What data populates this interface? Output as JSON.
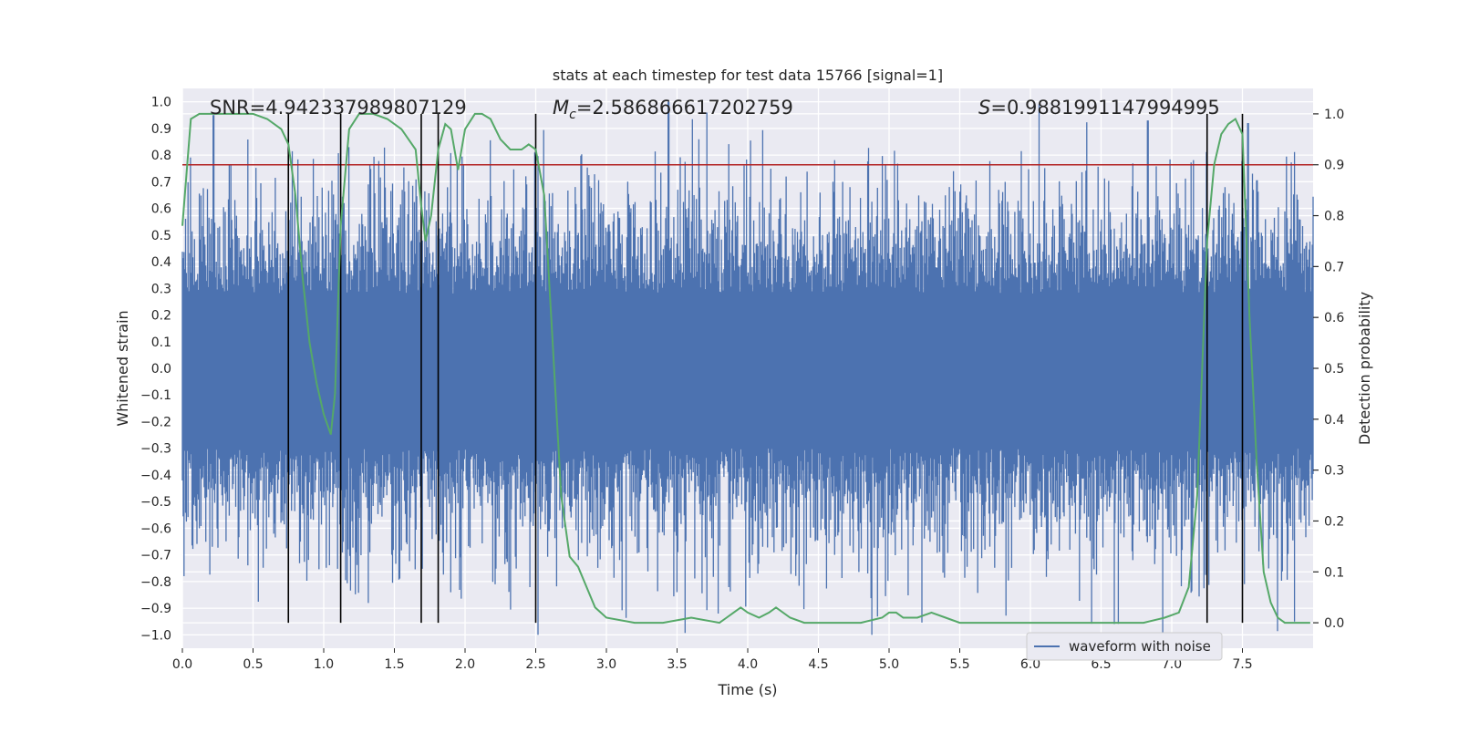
{
  "chart_data": {
    "type": "line",
    "title": "stats at each timestep for test data 15766 [signal=1]",
    "xlabel": "Time (s)",
    "ylabel_left": "Whitened strain",
    "ylabel_right": "Detection probability",
    "xlim": [
      0.0,
      8.0
    ],
    "ylim_left": [
      -1.05,
      1.05
    ],
    "ylim_right": [
      -0.05,
      1.05
    ],
    "x_ticks": [
      "0.0",
      "0.5",
      "1.0",
      "1.5",
      "2.0",
      "2.5",
      "3.0",
      "3.5",
      "4.0",
      "4.5",
      "5.0",
      "5.5",
      "6.0",
      "6.5",
      "7.0",
      "7.5"
    ],
    "x_tick_values": [
      0,
      0.5,
      1,
      1.5,
      2,
      2.5,
      3,
      3.5,
      4,
      4.5,
      5,
      5.5,
      6,
      6.5,
      7,
      7.5
    ],
    "y_ticks_left": [
      "1.0",
      "0.9",
      "0.8",
      "0.7",
      "0.6",
      "0.5",
      "0.4",
      "0.3",
      "0.2",
      "0.1",
      "0.0",
      "−0.1",
      "−0.2",
      "−0.3",
      "−0.4",
      "−0.5",
      "−0.6",
      "−0.7",
      "−0.8",
      "−0.9",
      "−1.0"
    ],
    "y_tick_values_left": [
      1.0,
      0.9,
      0.8,
      0.7,
      0.6,
      0.5,
      0.4,
      0.3,
      0.2,
      0.1,
      0.0,
      -0.1,
      -0.2,
      -0.3,
      -0.4,
      -0.5,
      -0.6,
      -0.7,
      -0.8,
      -0.9,
      -1.0
    ],
    "y_ticks_right": [
      "1.0",
      "0.9",
      "0.8",
      "0.7",
      "0.6",
      "0.5",
      "0.4",
      "0.3",
      "0.2",
      "0.1",
      "0.0"
    ],
    "y_tick_values_right": [
      1.0,
      0.9,
      0.8,
      0.7,
      0.6,
      0.5,
      0.4,
      0.3,
      0.2,
      0.1,
      0.0
    ],
    "stats": {
      "snr": "SNR=4.942337989807129",
      "mc_symbol": "M",
      "mc_sub": "c",
      "mc_value": "=2.586866617202759",
      "s_symbol": "S",
      "s_value": "=0.9881991147994995"
    },
    "legend": {
      "label": "waveform with noise",
      "placement": "lower-right"
    },
    "threshold": {
      "value": 0.9,
      "axis": "right",
      "color": "#b22222"
    },
    "vertical_markers_s": [
      0.75,
      1.12,
      1.69,
      1.81,
      2.5,
      7.25,
      7.5
    ],
    "waveform": {
      "name": "waveform with noise",
      "color": "#4c72b0",
      "duration_s": 8.0,
      "notable_peaks": [
        [
          0.22,
          0.95
        ],
        [
          1.14,
          0.62
        ],
        [
          3.44,
          1.0
        ],
        [
          6.83,
          0.93
        ],
        [
          7.54,
          0.92
        ],
        [
          3.79,
          -0.92
        ],
        [
          7.87,
          -0.95
        ]
      ]
    },
    "detection_probability": {
      "name": "detection probability",
      "color": "#55a868",
      "x": [
        0.0,
        0.06,
        0.12,
        0.2,
        0.3,
        0.4,
        0.5,
        0.6,
        0.7,
        0.75,
        0.8,
        0.85,
        0.9,
        0.95,
        1.0,
        1.05,
        1.08,
        1.12,
        1.18,
        1.25,
        1.35,
        1.45,
        1.55,
        1.6,
        1.65,
        1.69,
        1.72,
        1.76,
        1.81,
        1.86,
        1.9,
        1.95,
        2.0,
        2.07,
        2.12,
        2.18,
        2.25,
        2.32,
        2.4,
        2.45,
        2.5,
        2.56,
        2.62,
        2.68,
        2.74,
        2.8,
        2.86,
        2.92,
        3.0,
        3.2,
        3.4,
        3.6,
        3.8,
        3.85,
        3.9,
        3.95,
        4.0,
        4.08,
        4.15,
        4.2,
        4.3,
        4.4,
        4.6,
        4.8,
        4.95,
        5.0,
        5.05,
        5.1,
        5.2,
        5.3,
        5.4,
        5.5,
        5.7,
        6.0,
        6.5,
        6.8,
        6.95,
        7.05,
        7.12,
        7.18,
        7.25,
        7.3,
        7.35,
        7.4,
        7.45,
        7.5,
        7.55,
        7.6,
        7.65,
        7.7,
        7.75,
        7.8,
        7.9,
        7.98
      ],
      "y": [
        0.78,
        0.99,
        1.0,
        1.0,
        1.0,
        1.0,
        1.0,
        0.99,
        0.97,
        0.94,
        0.84,
        0.68,
        0.55,
        0.47,
        0.41,
        0.37,
        0.45,
        0.78,
        0.97,
        1.0,
        1.0,
        0.99,
        0.97,
        0.95,
        0.93,
        0.82,
        0.75,
        0.8,
        0.93,
        0.98,
        0.97,
        0.89,
        0.97,
        1.0,
        1.0,
        0.99,
        0.95,
        0.93,
        0.93,
        0.94,
        0.93,
        0.84,
        0.55,
        0.25,
        0.13,
        0.11,
        0.07,
        0.03,
        0.01,
        0.0,
        0.0,
        0.01,
        0.0,
        0.01,
        0.02,
        0.03,
        0.02,
        0.01,
        0.02,
        0.03,
        0.01,
        0.0,
        0.0,
        0.0,
        0.01,
        0.02,
        0.02,
        0.01,
        0.01,
        0.02,
        0.01,
        0.0,
        0.0,
        0.0,
        0.0,
        0.0,
        0.01,
        0.02,
        0.07,
        0.25,
        0.75,
        0.9,
        0.96,
        0.98,
        0.99,
        0.96,
        0.6,
        0.32,
        0.1,
        0.04,
        0.01,
        0.0,
        0.0,
        0.0
      ]
    },
    "colors": {
      "plot_background": "#eaeaf2",
      "grid": "#ffffff",
      "markers": "#000000",
      "text": "#262626"
    }
  }
}
